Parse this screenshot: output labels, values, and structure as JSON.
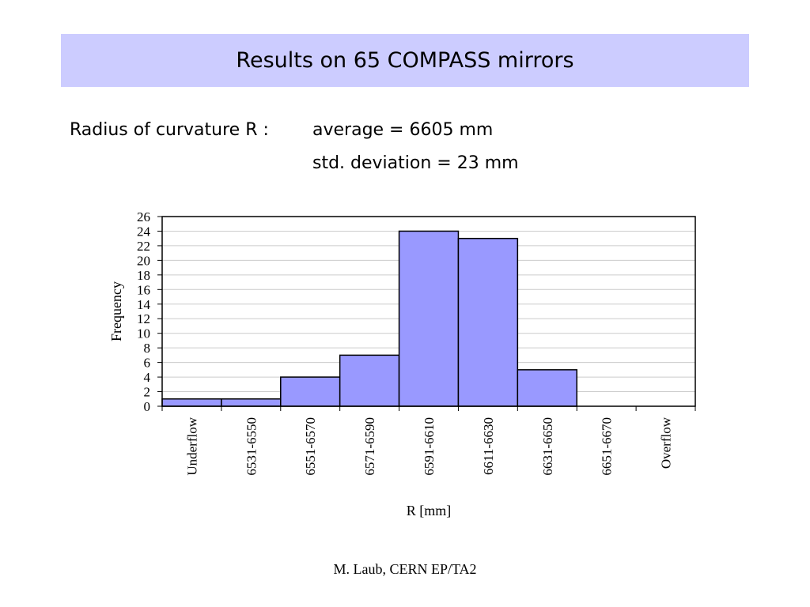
{
  "slide": {
    "title": "Results on 65 COMPASS mirrors",
    "stats_label": "Radius of curvature R :",
    "stats_average": "average = 6605 mm",
    "stats_std": "std. deviation  = 23 mm",
    "footer": "M. Laub, CERN EP/TA2"
  },
  "colors": {
    "banner": "#ccccff",
    "bar_fill": "#9999ff",
    "bar_stroke": "#000000",
    "grid": "#cccccc"
  },
  "chart_data": {
    "type": "bar",
    "categories": [
      "Underflow",
      "6531-6550",
      "6551-6570",
      "6571-6590",
      "6591-6610",
      "6611-6630",
      "6631-6650",
      "6651-6670",
      "Overflow"
    ],
    "values": [
      1,
      1,
      4,
      7,
      24,
      23,
      5,
      0,
      0
    ],
    "xlabel": "R [mm]",
    "ylabel": "Frequency",
    "ylim": [
      0,
      26
    ],
    "yticks": [
      0,
      2,
      4,
      6,
      8,
      10,
      12,
      14,
      16,
      18,
      20,
      22,
      24,
      26
    ],
    "grid": true,
    "legend": "none"
  }
}
